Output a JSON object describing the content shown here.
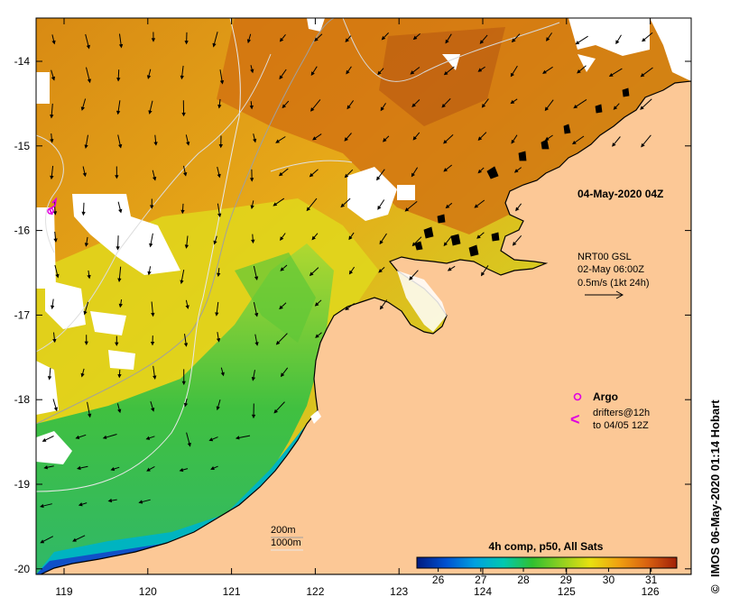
{
  "map": {
    "lon_ticks": [
      "119",
      "120",
      "121",
      "122",
      "123",
      "124",
      "125",
      "126"
    ],
    "lat_ticks": [
      "-14",
      "-15",
      "-16",
      "-17",
      "-18",
      "-19",
      "-20"
    ]
  },
  "annotations": {
    "date_label": "04-May-2020 04Z",
    "current_source": "NRT00 GSL",
    "current_time": "02-May 06:00Z",
    "vector_scale": "0.5m/s (1kt 24h)",
    "argo_label": "Argo",
    "drifters_line1": "drifters@12h",
    "drifters_line2": "to 04/05 12Z",
    "drifter_symbol": "<",
    "isobath_200": "200m",
    "isobath_1000": "1000m",
    "credit": "IMOS 06-May-2020 01:14 Hobart"
  },
  "colorbar": {
    "title": "4h comp, p50, All Sats",
    "ticks": [
      "26",
      "27",
      "28",
      "29",
      "30",
      "31"
    ],
    "stops": [
      "#001a80",
      "#0050d0",
      "#00a0e0",
      "#00c8b0",
      "#30c030",
      "#90d020",
      "#e8e010",
      "#f0a010",
      "#d86010",
      "#a02008"
    ]
  },
  "colors": {
    "land": "#fcc896",
    "sst_warm": "#d4780c",
    "sst_mid": "#e8a818",
    "sst_cool": "#40c040",
    "argo": "#e000e0",
    "coast": "#000000"
  }
}
